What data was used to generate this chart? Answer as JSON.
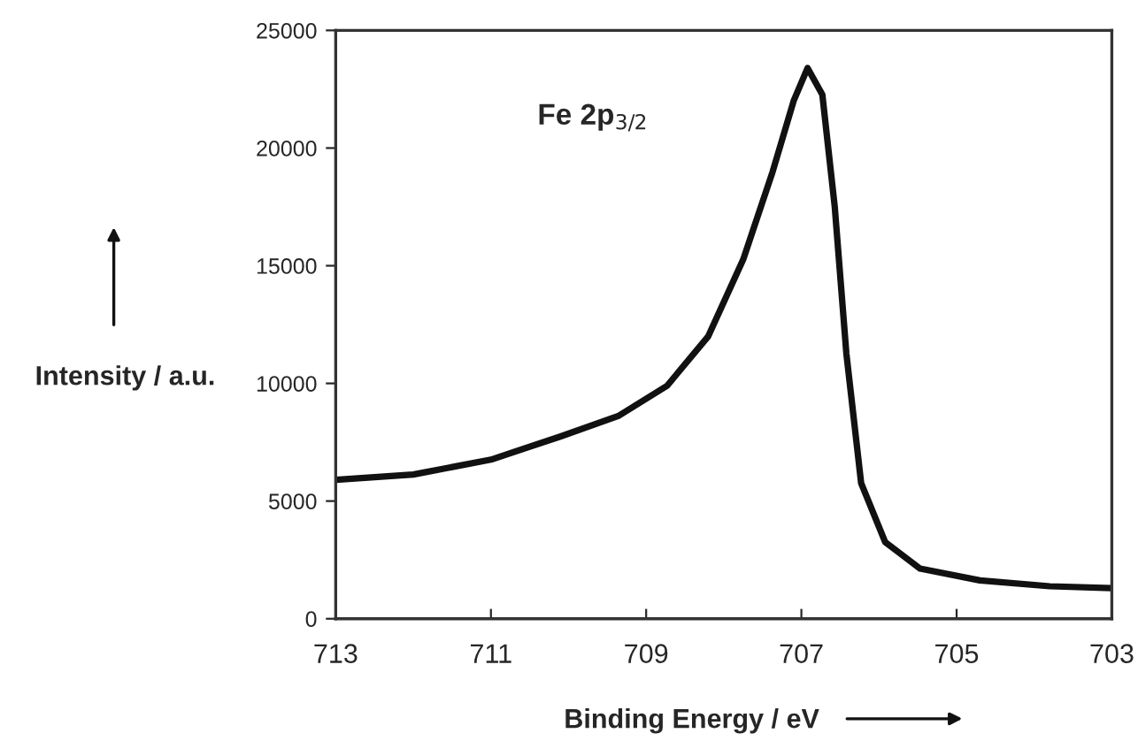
{
  "chart_data": {
    "type": "line",
    "xlabel": "Binding Energy / eV",
    "ylabel": "Intensity / a.u.",
    "annotations": [
      "Fe 2p$_{3/2}$"
    ],
    "x": [
      713,
      712.0,
      711.0,
      710.1,
      709.35,
      708.73,
      708.2,
      707.75,
      707.37,
      707.1,
      706.92,
      706.73,
      706.57,
      706.42,
      706.23,
      705.92,
      705.47,
      704.7,
      703.8,
      703
    ],
    "series": [
      {
        "color": "#111111",
        "values": [
          5900,
          6130,
          6760,
          7750,
          8630,
          9900,
          12000,
          15260,
          19000,
          22000,
          23400,
          22270,
          17500,
          11260,
          5760,
          3250,
          2130,
          1630,
          1380,
          1300
        ]
      }
    ],
    "xlim": [
      713,
      703
    ],
    "xticks": [
      713,
      711,
      709,
      707,
      705,
      703
    ],
    "ylim": [
      0,
      25000
    ],
    "yticks": [
      0,
      5000,
      10000,
      15000,
      20000,
      25000
    ],
    "grid": false,
    "legend": false,
    "marker": "none",
    "line_style": "solid"
  }
}
